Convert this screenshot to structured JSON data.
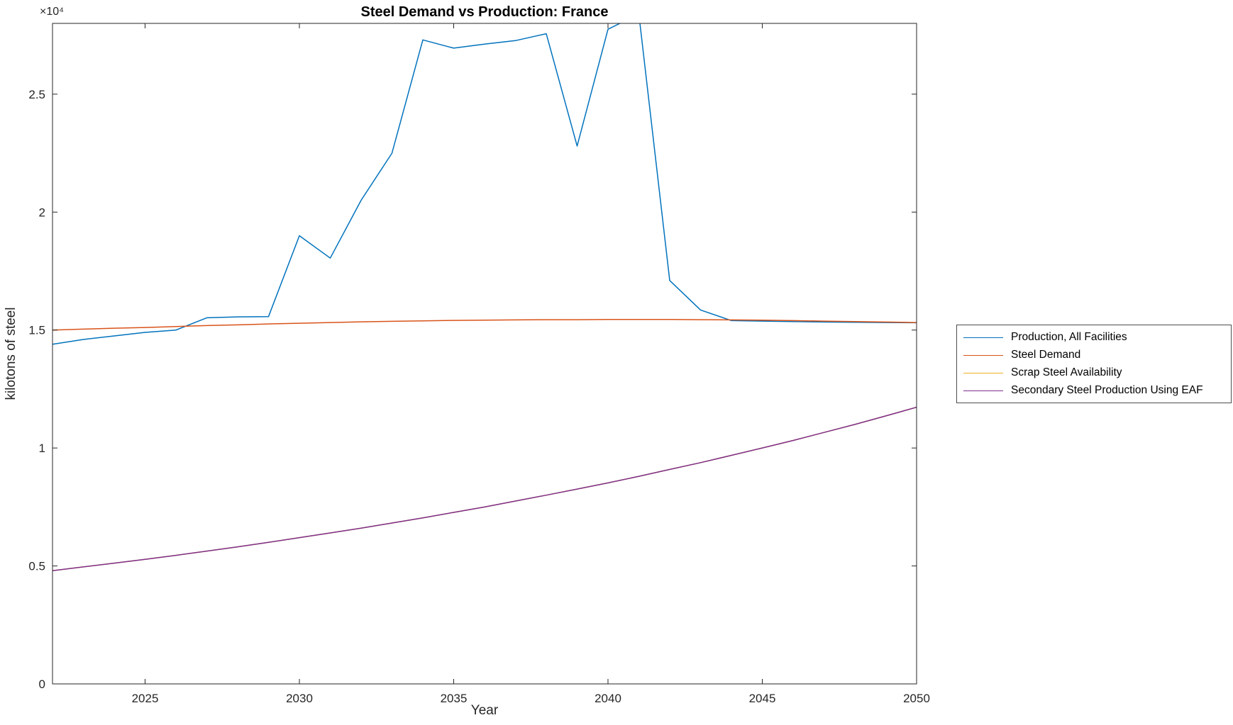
{
  "figure": {
    "title": "Steel Demand vs Production: France",
    "xlabel": "Year",
    "ylabel": "kilotons of steel",
    "y_multiplier": "×10⁴"
  },
  "chart_data": {
    "type": "line",
    "title": "Steel Demand vs Production: France",
    "xlabel": "Year",
    "ylabel": "kilotons of steel",
    "xlim": [
      2022,
      2050
    ],
    "ylim": [
      0,
      28000
    ],
    "x_ticks": [
      2025,
      2030,
      2035,
      2040,
      2045,
      2050
    ],
    "y_ticks": [
      0,
      5000,
      10000,
      15000,
      20000,
      25000
    ],
    "y_tick_labels": [
      "0",
      "0.5",
      "1",
      "1.5",
      "2",
      "2.5"
    ],
    "grid": false,
    "legend_position": "right-outside",
    "axis_color": "#262626",
    "x": [
      2022,
      2023,
      2024,
      2025,
      2026,
      2027,
      2028,
      2029,
      2030,
      2031,
      2032,
      2033,
      2034,
      2035,
      2036,
      2037,
      2038,
      2039,
      2040,
      2041,
      2042,
      2043,
      2044,
      2045,
      2046,
      2047,
      2048,
      2049,
      2050
    ],
    "series": [
      {
        "name": "Production, All Facilities",
        "color": "#0072BD",
        "values": [
          14400,
          14600,
          14750,
          14900,
          15000,
          15520,
          15560,
          15570,
          19000,
          18050,
          20500,
          22500,
          27300,
          26950,
          27120,
          27270,
          27560,
          22800,
          27750,
          28400,
          17100,
          15850,
          15400,
          15380,
          15360,
          15340,
          15330,
          15320,
          15310
        ]
      },
      {
        "name": "Steel Demand",
        "color": "#D95319",
        "values": [
          15000,
          15040,
          15080,
          15110,
          15150,
          15190,
          15220,
          15260,
          15290,
          15320,
          15350,
          15370,
          15390,
          15410,
          15420,
          15430,
          15440,
          15440,
          15450,
          15450,
          15450,
          15440,
          15430,
          15420,
          15400,
          15380,
          15360,
          15340,
          15320
        ]
      },
      {
        "name": "Scrap Steel Availability",
        "color": "#EDB120",
        "values": [
          4800,
          4960,
          5120,
          5280,
          5450,
          5630,
          5810,
          6000,
          6200,
          6400,
          6600,
          6820,
          7040,
          7270,
          7500,
          7750,
          8000,
          8260,
          8520,
          8800,
          9090,
          9380,
          9690,
          10000,
          10320,
          10660,
          11000,
          11360,
          11730
        ]
      },
      {
        "name": "Secondary Steel Production Using EAF",
        "color": "#7E2F8E",
        "values": [
          4800,
          4960,
          5120,
          5280,
          5450,
          5630,
          5810,
          6000,
          6200,
          6400,
          6600,
          6820,
          7040,
          7270,
          7500,
          7750,
          8000,
          8260,
          8520,
          8800,
          9090,
          9380,
          9690,
          10000,
          10320,
          10660,
          11000,
          11360,
          11730
        ]
      }
    ]
  }
}
